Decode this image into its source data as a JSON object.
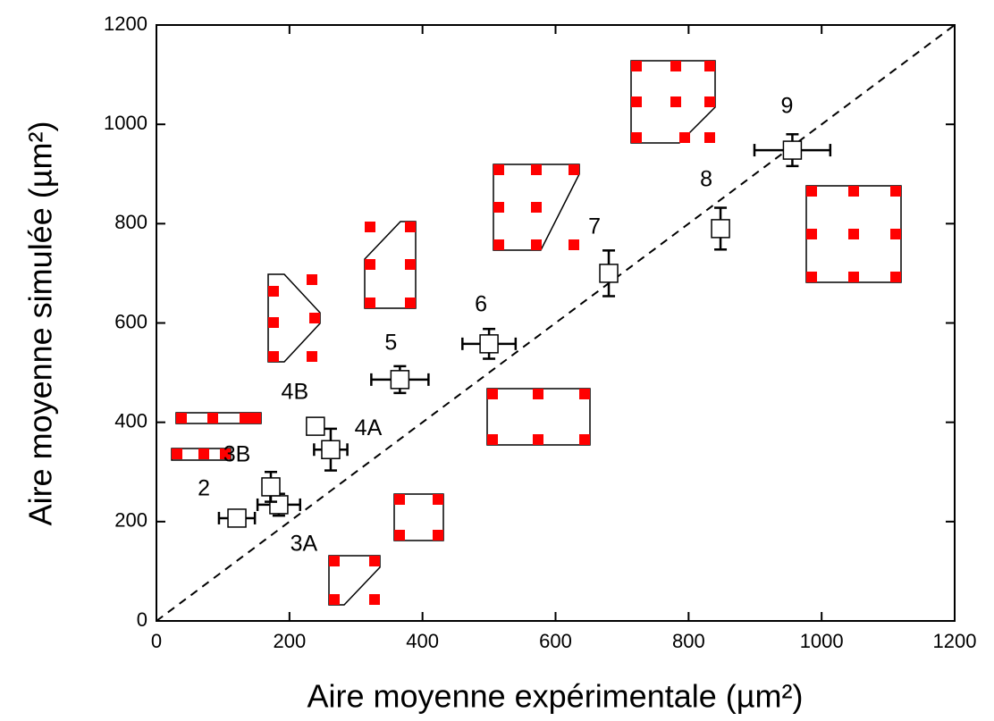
{
  "chart_data": {
    "type": "scatter",
    "x_label": "Aire moyenne expérimentale (µm²)",
    "y_label": "Aire moyenne simulée (µm²)",
    "xlim": [
      0,
      1200
    ],
    "ylim": [
      0,
      1200
    ],
    "xticks": [
      0,
      200,
      400,
      600,
      800,
      1000,
      1200
    ],
    "yticks": [
      0,
      200,
      400,
      600,
      800,
      1000,
      1200
    ],
    "labels": [
      "2",
      "3A",
      "3B",
      "4A",
      "4B",
      "5",
      "6",
      "7",
      "8",
      "9"
    ],
    "x": [
      121,
      184,
      172,
      262,
      239,
      366,
      500,
      680,
      848,
      956
    ],
    "values": [
      207,
      234,
      270,
      345,
      392,
      486,
      558,
      700,
      790,
      948
    ],
    "xerr": [
      27,
      32,
      8,
      25,
      null,
      43,
      40,
      10,
      10,
      57
    ],
    "yerr": [
      15,
      22,
      30,
      42,
      null,
      27,
      30,
      46,
      42,
      32
    ],
    "color": "#000000"
  }
}
